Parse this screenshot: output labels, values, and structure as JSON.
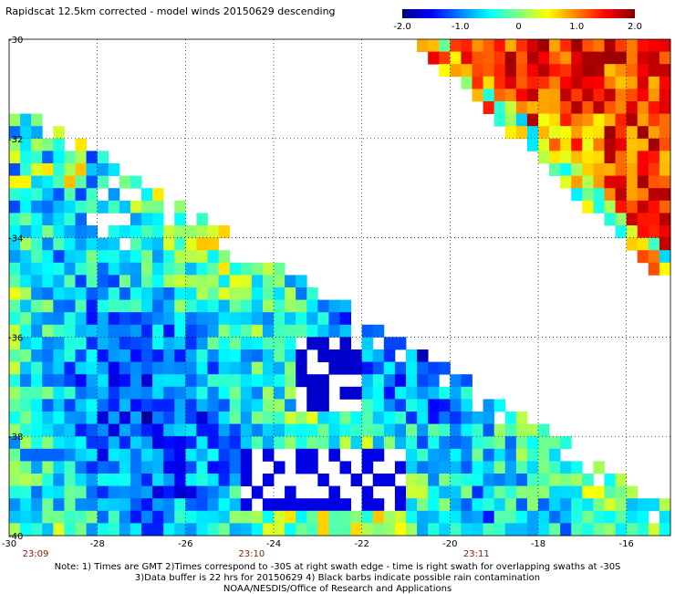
{
  "chart_data": {
    "type": "heatmap",
    "title": "Rapidscat 12.5km corrected - model winds 20150629 descending",
    "xlabel": "",
    "ylabel": "",
    "xlim": [
      -30,
      -15
    ],
    "ylim": [
      -40,
      -30
    ],
    "x_ticks": [
      "-30",
      "-28",
      "-26",
      "-24",
      "-22",
      "-20",
      "-18",
      "-16"
    ],
    "y_ticks": [
      "-30",
      "-32",
      "-34",
      "-36",
      "-38",
      "-40"
    ],
    "colorbar": {
      "min": -2.0,
      "max": 2.0,
      "tick_labels": [
        "-2.0",
        "-1.0",
        "0",
        "1.0",
        "2.0"
      ],
      "colors": [
        "#00007f",
        "#0000ff",
        "#0080ff",
        "#00ffff",
        "#80ff80",
        "#ffff00",
        "#ff8000",
        "#ff0000",
        "#800000"
      ]
    },
    "swath_times": [
      {
        "label": "23:09",
        "x": -29.4
      },
      {
        "label": "23:10",
        "x": -24.5
      },
      {
        "label": "23:11",
        "x": -19.4
      }
    ],
    "grid": true,
    "cell_size_deg": 0.125
  },
  "notes": {
    "line1": "Note: 1) Times are GMT 2)Times correspond to -30S at right swath edge - time is right swath for overlapping swaths at -30S",
    "line2": "3)Data buffer is 22 hrs for 20150629 4) Black barbs indicate possible rain contamination",
    "line3": "NOAA/NESDIS/Office of Research and Applications"
  }
}
